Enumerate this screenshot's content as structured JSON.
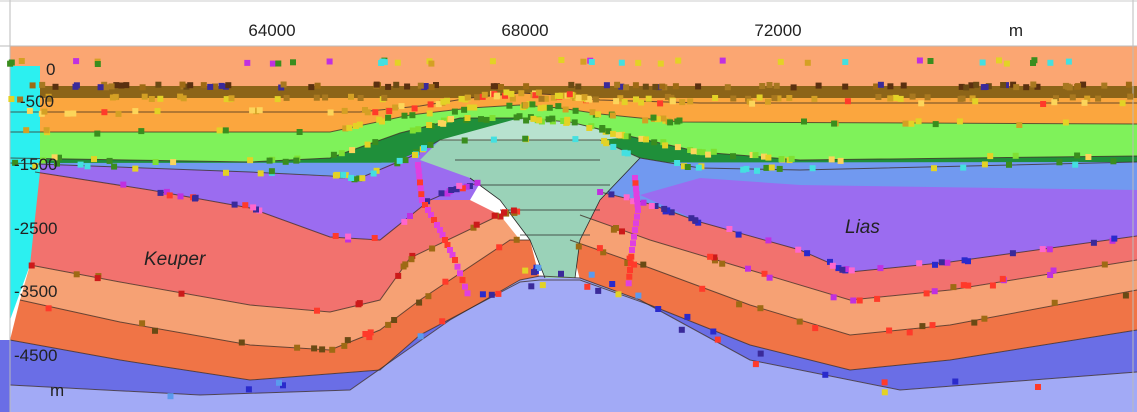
{
  "x_axis": {
    "ticks": [
      {
        "value": 64000,
        "label": "64000"
      },
      {
        "value": 68000,
        "label": "68000"
      },
      {
        "value": 72000,
        "label": "72000"
      }
    ],
    "unit_label": "m"
  },
  "y_axis": {
    "ticks": [
      {
        "value": 0,
        "label": "0"
      },
      {
        "value": -500,
        "label": "-500"
      },
      {
        "value": -1500,
        "label": "-1500"
      },
      {
        "value": -2500,
        "label": "-2500"
      },
      {
        "value": -3500,
        "label": "-3500"
      },
      {
        "value": -4500,
        "label": "-4500"
      }
    ],
    "unit_label": "m"
  },
  "formations": [
    {
      "id": "keuper",
      "label": "Keuper"
    },
    {
      "id": "lias",
      "label": "Lias"
    }
  ],
  "colors": {
    "layer_top": "#fba672",
    "layer_dark_band": "#8c6418",
    "layer_orange": "#fba63e",
    "layer_green": "#7ff25a",
    "layer_dark_green": "#1f8f3a",
    "layer_blue": "#7199f0",
    "layer_purple": "#9b6cf0",
    "layer_salmon": "#f2726e",
    "layer_peach": "#f6a174",
    "layer_red_orange": "#f07446",
    "layer_basement": "#a2aaf6",
    "layer_deep_blue": "#6a6ee6",
    "salt_dome": "#9ad2b8",
    "salt_dome_light": "#b8e2cf",
    "left_edge_cyan": "#2cf0f0",
    "grid": "#bbbbbb"
  }
}
